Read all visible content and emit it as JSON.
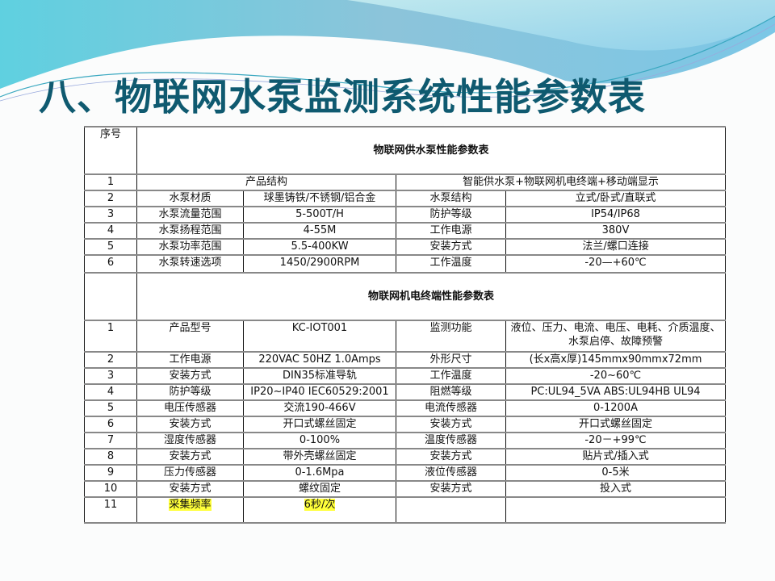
{
  "slide": {
    "title": "八、物联网水泵监测系统性能参数表",
    "accent_color": "#0f5a70"
  },
  "table": {
    "index_header": "序号",
    "section1": {
      "title": "物联网供水泵性能参数表",
      "rows": [
        {
          "no": "1",
          "merged": true,
          "a": "产品结构",
          "b": "智能供水泵+物联网机电终端+移动端显示"
        },
        {
          "no": "2",
          "c1": "水泵材质",
          "c2": "球墨铸铁/不锈钢/铝合金",
          "c3": "水泵结构",
          "c4": "立式/卧式/直联式"
        },
        {
          "no": "3",
          "c1": "水泵流量范围",
          "c2": "5-500T/H",
          "c3": "防护等级",
          "c4": "IP54/IP68"
        },
        {
          "no": "4",
          "c1": "水泵扬程范围",
          "c2": "4-55M",
          "c3": "工作电源",
          "c4": "380V"
        },
        {
          "no": "5",
          "c1": "水泵功率范围",
          "c2": "5.5-400KW",
          "c3": "安装方式",
          "c4": "法兰/螺口连接"
        },
        {
          "no": "6",
          "c1": "水泵转速选项",
          "c2": "1450/2900RPM",
          "c3": "工作温度",
          "c4": "-20—+60℃"
        }
      ]
    },
    "section2": {
      "title": "物联网机电终端性能参数表",
      "rows": [
        {
          "no": "1",
          "c1": "产品型号",
          "c2": "KC-IOT001",
          "c3": "监测功能",
          "c4": "液位、压力、电流、电压、电耗、介质温度、水泵启停、故障预警"
        },
        {
          "no": "2",
          "c1": "工作电源",
          "c2": "220VAC 50HZ 1.0Amps",
          "c3": "外形尺寸",
          "c4": "(长x高x厚)145mmx90mmx72mm"
        },
        {
          "no": "3",
          "c1": "安装方式",
          "c2": "DIN35标准导轨",
          "c3": "工作温度",
          "c4": "-20~60℃"
        },
        {
          "no": "4",
          "c1": "防护等级",
          "c2": "IP20~IP40  IEC60529:2001",
          "c3": "阻燃等级",
          "c4": "PC:UL94_5VA ABS:UL94HB UL94"
        },
        {
          "no": "5",
          "c1": "电压传感器",
          "c2": "交流190-466V",
          "c3": "电流传感器",
          "c4": "0-1200A"
        },
        {
          "no": "6",
          "c1": "安装方式",
          "c2": "开口式螺丝固定",
          "c3": "安装方式",
          "c4": "开口式螺丝固定"
        },
        {
          "no": "7",
          "c1": "湿度传感器",
          "c2": "0-100%",
          "c3": "温度传感器",
          "c4": "-20－+99℃"
        },
        {
          "no": "8",
          "c1": "安装方式",
          "c2": "带外壳螺丝固定",
          "c3": "安装方式",
          "c4": "贴片式/插入式"
        },
        {
          "no": "9",
          "c1": "压力传感器",
          "c2": "0-1.6Mpa",
          "c3": "液位传感器",
          "c4": "0-5米"
        },
        {
          "no": "10",
          "c1": "安装方式",
          "c2": "螺纹固定",
          "c3": "安装方式",
          "c4": "投入式"
        },
        {
          "no": "11",
          "c1": "采集频率",
          "c2": "6秒/次",
          "c3": "",
          "c4": "",
          "highlight": true
        }
      ]
    },
    "highlight_color": "#ffff3a"
  }
}
